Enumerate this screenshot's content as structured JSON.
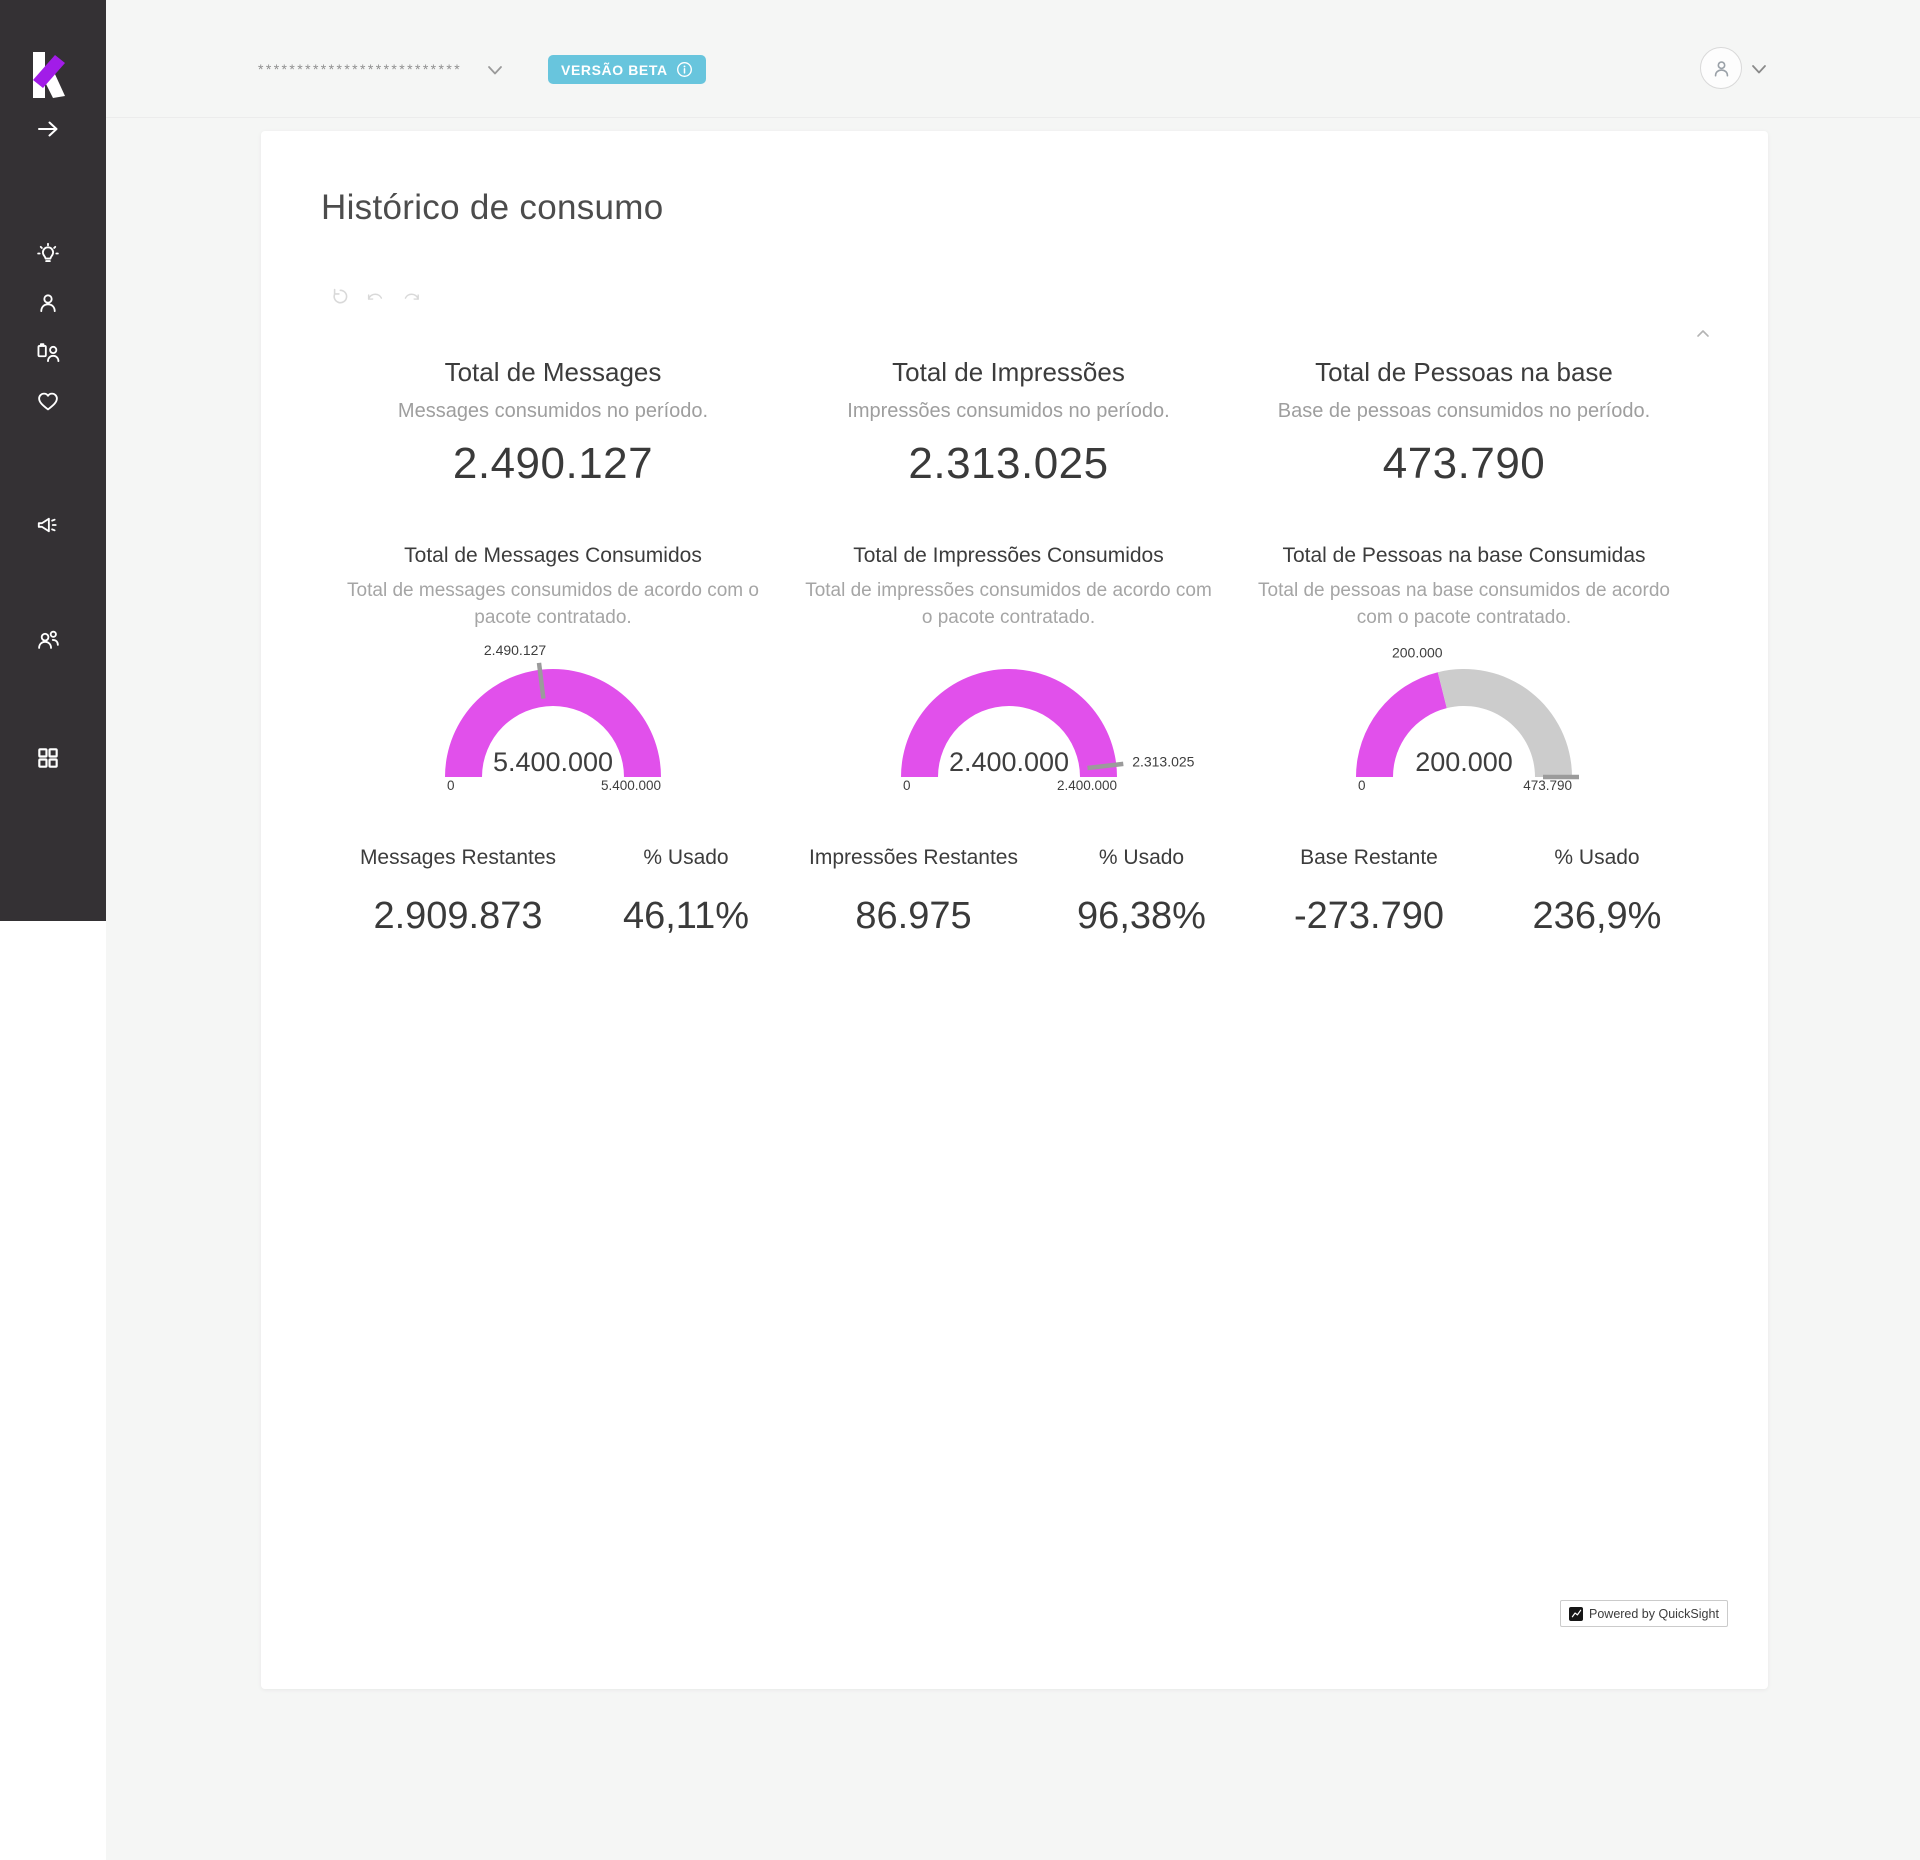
{
  "sidebar": {
    "logo_icon": "brand-k-logo",
    "expand_icon": "arrow-right-icon",
    "icons": [
      "idea-icon",
      "user-icon",
      "contact-board-icon",
      "heart-icon",
      "megaphone-icon",
      "people-icon",
      "apps-grid-icon"
    ]
  },
  "topbar": {
    "account_masked": "**************************",
    "beta_badge_label": "VERSÃO BETA",
    "beta_badge_color": "#68c5dd",
    "info_icon": "info-icon",
    "avatar_icon": "user-avatar-icon"
  },
  "page": {
    "title": "Histórico de consumo",
    "history_controls": [
      "reset-icon",
      "undo-icon",
      "redo-icon"
    ]
  },
  "colors": {
    "accent_magenta": "#e150eb",
    "gauge_gray": "#cccccc",
    "marker_gray": "#9b9b9b",
    "sidebar_dark": "#343134"
  },
  "kpis": [
    {
      "title": "Total de Messages",
      "subtitle": "Messages consumidos no período.",
      "total": "2.490.127",
      "section_title": "Total de Messages Consumidos",
      "section_desc": "Total de messages consumidos de acordo com o pacote contratado.",
      "gauge": {
        "type": "gauge",
        "value": 2490127,
        "axis_max": 5400000,
        "min_label": "0",
        "max_label": "5.400.000",
        "center_label": "5.400.000",
        "segments": [
          {
            "pct": 100,
            "color": "#e150eb"
          }
        ],
        "marker": {
          "pct": 46.11,
          "label": "2.490.127",
          "label_placement": "above",
          "label_pct": 46.11
        }
      },
      "stats": [
        {
          "label": "Messages Restantes",
          "value": "2.909.873"
        },
        {
          "label": "% Usado",
          "value": "46,11%"
        }
      ]
    },
    {
      "title": "Total de Impressões",
      "subtitle": "Impressões consumidos no período.",
      "total": "2.313.025",
      "section_title": "Total de Impressões Consumidos",
      "section_desc": "Total de impressões consumidos de acordo com o pacote contratado.",
      "gauge": {
        "type": "gauge",
        "value": 2313025,
        "axis_max": 2400000,
        "min_label": "0",
        "max_label": "2.400.000",
        "center_label": "2.400.000",
        "segments": [
          {
            "pct": 100,
            "color": "#e150eb"
          }
        ],
        "marker": {
          "pct": 96.38,
          "label": "2.313.025",
          "label_placement": "right",
          "label_pct": 96.38
        }
      },
      "stats": [
        {
          "label": "Impressões Restantes",
          "value": "86.975"
        },
        {
          "label": "% Usado",
          "value": "96,38%"
        }
      ]
    },
    {
      "title": "Total de Pessoas na base",
      "subtitle": "Base de pessoas consumidos no período.",
      "total": "473.790",
      "section_title": "Total de Pessoas na base Consumidas",
      "section_desc": "Total de pessoas na base consumidos de acordo com o pacote contratado.",
      "gauge": {
        "type": "gauge",
        "value": 473790,
        "axis_max": 473790,
        "min_label": "0",
        "max_label": "473.790",
        "center_label": "200.000",
        "segments": [
          {
            "pct": 42.2,
            "color": "#e150eb"
          },
          {
            "pct": 57.8,
            "color": "#cccccc"
          }
        ],
        "marker": {
          "pct": 100,
          "label": "200.000",
          "label_placement": "above",
          "label_pct": 42.2
        }
      },
      "stats": [
        {
          "label": "Base Restante",
          "value": "-273.790"
        },
        {
          "label": "% Usado",
          "value": "236,9%"
        }
      ]
    }
  ],
  "footer": {
    "powered_by": "Powered by QuickSight",
    "chart_icon": "quicksight-chart-icon"
  }
}
